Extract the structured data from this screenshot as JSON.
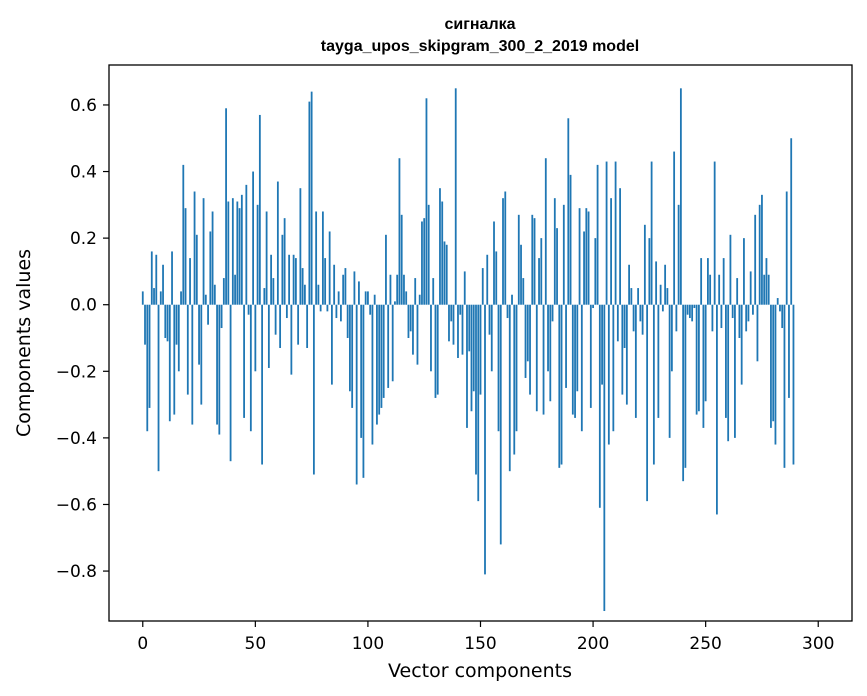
{
  "chart_data": {
    "type": "bar",
    "title_line1": "сигналка",
    "title_line2": "tayga_upos_skipgram_300_2_2019 model",
    "xlabel": "Vector components",
    "ylabel": "Components values",
    "xlim": [
      -15,
      315
    ],
    "ylim": [
      -0.95,
      0.72
    ],
    "bar_color": "#1f77b4",
    "grid": false,
    "x_ticks": [
      0,
      50,
      100,
      150,
      200,
      250,
      300
    ],
    "x_tick_labels": [
      "0",
      "50",
      "100",
      "150",
      "200",
      "250",
      "300"
    ],
    "y_ticks": [
      -0.8,
      -0.6,
      -0.4,
      -0.2,
      0.0,
      0.2,
      0.4,
      0.6
    ],
    "y_tick_labels": [
      "−0.8",
      "−0.6",
      "−0.4",
      "−0.2",
      "0.0",
      "0.2",
      "0.4",
      "0.6"
    ],
    "values": [
      0.04,
      -0.12,
      -0.38,
      -0.31,
      0.16,
      0.05,
      0.15,
      -0.5,
      0.04,
      0.12,
      -0.1,
      -0.11,
      -0.35,
      0.16,
      -0.33,
      -0.12,
      -0.2,
      0.04,
      0.42,
      0.29,
      -0.27,
      0.14,
      -0.36,
      0.34,
      0.21,
      -0.18,
      -0.3,
      0.32,
      0.03,
      -0.06,
      0.22,
      0.28,
      0.06,
      -0.36,
      -0.39,
      -0.07,
      0.08,
      0.59,
      0.31,
      -0.47,
      0.32,
      0.09,
      0.31,
      0.29,
      0.33,
      -0.34,
      0.36,
      -0.03,
      -0.38,
      0.4,
      -0.2,
      0.3,
      0.57,
      -0.48,
      0.05,
      0.28,
      -0.19,
      0.15,
      0.08,
      -0.09,
      0.37,
      -0.13,
      0.21,
      0.26,
      -0.04,
      0.15,
      -0.21,
      0.15,
      0.14,
      -0.12,
      0.35,
      0.11,
      0.06,
      -0.13,
      0.61,
      0.64,
      -0.51,
      0.28,
      0.06,
      -0.02,
      0.28,
      0.14,
      -0.02,
      0.22,
      -0.24,
      0.12,
      -0.04,
      0.04,
      -0.05,
      0.09,
      0.11,
      -0.1,
      -0.26,
      -0.31,
      0.1,
      -0.54,
      0.07,
      -0.4,
      -0.52,
      0.04,
      0.04,
      -0.03,
      -0.42,
      0.03,
      -0.36,
      -0.33,
      -0.31,
      -0.28,
      0.21,
      -0.25,
      0.09,
      -0.23,
      0.01,
      0.09,
      0.44,
      0.27,
      0.09,
      0.04,
      -0.1,
      -0.08,
      -0.15,
      0.08,
      -0.18,
      0.03,
      0.25,
      0.26,
      0.62,
      0.3,
      -0.2,
      0.08,
      -0.28,
      -0.27,
      0.35,
      0.31,
      0.19,
      0.18,
      -0.11,
      -0.05,
      -0.12,
      0.65,
      -0.16,
      -0.03,
      -0.15,
      0.1,
      -0.37,
      -0.14,
      -0.32,
      -0.26,
      -0.51,
      -0.59,
      -0.27,
      0.11,
      -0.81,
      0.15,
      -0.09,
      -0.2,
      0.25,
      0.16,
      -0.38,
      -0.72,
      0.32,
      0.34,
      -0.04,
      -0.5,
      0.03,
      -0.45,
      -0.38,
      0.27,
      0.18,
      0.08,
      -0.22,
      -0.17,
      -0.27,
      0.27,
      0.26,
      -0.32,
      0.14,
      0.2,
      -0.33,
      0.44,
      -0.2,
      -0.29,
      -0.05,
      0.32,
      0.23,
      -0.49,
      -0.48,
      0.3,
      -0.25,
      0.56,
      0.39,
      -0.33,
      -0.34,
      -0.26,
      0.29,
      -0.38,
      0.22,
      0.29,
      0.28,
      -0.31,
      -0.01,
      0.2,
      0.42,
      -0.61,
      -0.24,
      -0.92,
      0.43,
      -0.42,
      0.32,
      -0.38,
      0.43,
      -0.11,
      0.35,
      -0.27,
      -0.13,
      -0.3,
      0.12,
      0.05,
      -0.08,
      -0.34,
      0.05,
      -0.05,
      -0.09,
      0.24,
      -0.59,
      0.2,
      0.43,
      -0.48,
      0.13,
      -0.34,
      0.06,
      -0.02,
      0.12,
      0.05,
      -0.4,
      -0.2,
      0.46,
      -0.08,
      0.3,
      0.65,
      -0.53,
      -0.49,
      -0.03,
      -0.04,
      -0.05,
      -0.01,
      -0.33,
      -0.32,
      0.14,
      -0.37,
      -0.29,
      0.14,
      0.09,
      -0.08,
      0.43,
      -0.63,
      0.09,
      -0.07,
      0.14,
      -0.34,
      -0.41,
      0.21,
      -0.04,
      -0.4,
      0.08,
      -0.1,
      -0.24,
      0.2,
      -0.08,
      -0.05,
      0.1,
      -0.03,
      0.27,
      -0.17,
      0.3,
      0.33,
      0.09,
      0.14,
      0.09,
      -0.37,
      -0.35,
      -0.42,
      0.02,
      -0.02,
      -0.07,
      -0.49,
      0.34,
      -0.28,
      0.5,
      -0.48
    ]
  }
}
